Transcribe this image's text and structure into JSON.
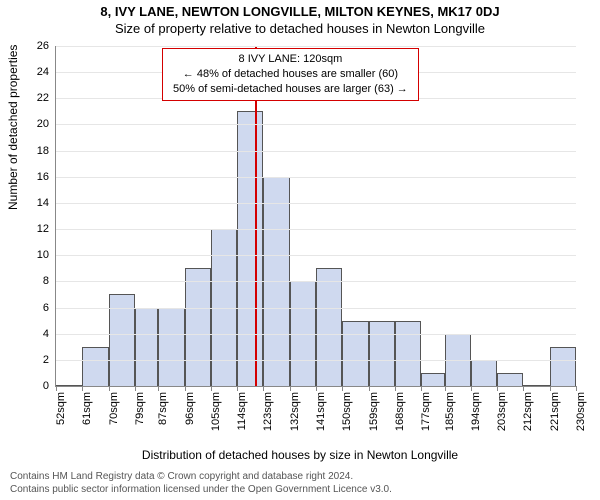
{
  "title_line1": "8, IVY LANE, NEWTON LONGVILLE, MILTON KEYNES, MK17 0DJ",
  "title_line2": "Size of property relative to detached houses in Newton Longville",
  "ylabel": "Number of detached properties",
  "xlabel": "Distribution of detached houses by size in Newton Longville",
  "footer_line1": "Contains HM Land Registry data © Crown copyright and database right 2024.",
  "footer_line2": "Contains public sector information licensed under the Open Government Licence v3.0.",
  "callout": {
    "line1": "8 IVY LANE: 120sqm",
    "line2": "← 48% of detached houses are smaller (60)",
    "line3": "50% of semi-detached houses are larger (63) →"
  },
  "chart": {
    "type": "histogram",
    "ylim": [
      0,
      26
    ],
    "ytick_step": 2,
    "bar_fill": "#cfd9ef",
    "bar_stroke": "#555",
    "grid_color": "#e6e6e6",
    "background_color": "#ffffff",
    "marker_value": 120,
    "marker_color": "#d40000",
    "x_tick_labels": [
      "52sqm",
      "61sqm",
      "70sqm",
      "79sqm",
      "87sqm",
      "96sqm",
      "105sqm",
      "114sqm",
      "123sqm",
      "132sqm",
      "141sqm",
      "150sqm",
      "159sqm",
      "168sqm",
      "177sqm",
      "185sqm",
      "194sqm",
      "203sqm",
      "212sqm",
      "221sqm",
      "230sqm"
    ],
    "x_tick_values": [
      52,
      61,
      70,
      79,
      87,
      96,
      105,
      114,
      123,
      132,
      141,
      150,
      159,
      168,
      177,
      185,
      194,
      203,
      212,
      221,
      230
    ],
    "bin_edges": [
      52,
      61,
      70,
      79,
      87,
      96,
      105,
      114,
      123,
      132,
      141,
      150,
      159,
      168,
      177,
      185,
      194,
      203,
      212,
      221,
      230
    ],
    "values": [
      0,
      3,
      7,
      6,
      6,
      9,
      12,
      21,
      16,
      8,
      9,
      5,
      5,
      5,
      1,
      4,
      2,
      1,
      0,
      3
    ],
    "x_range": [
      52,
      230
    ],
    "bar_width": 1.0,
    "axis_fontsize": 11,
    "title_fontsize": 13
  }
}
